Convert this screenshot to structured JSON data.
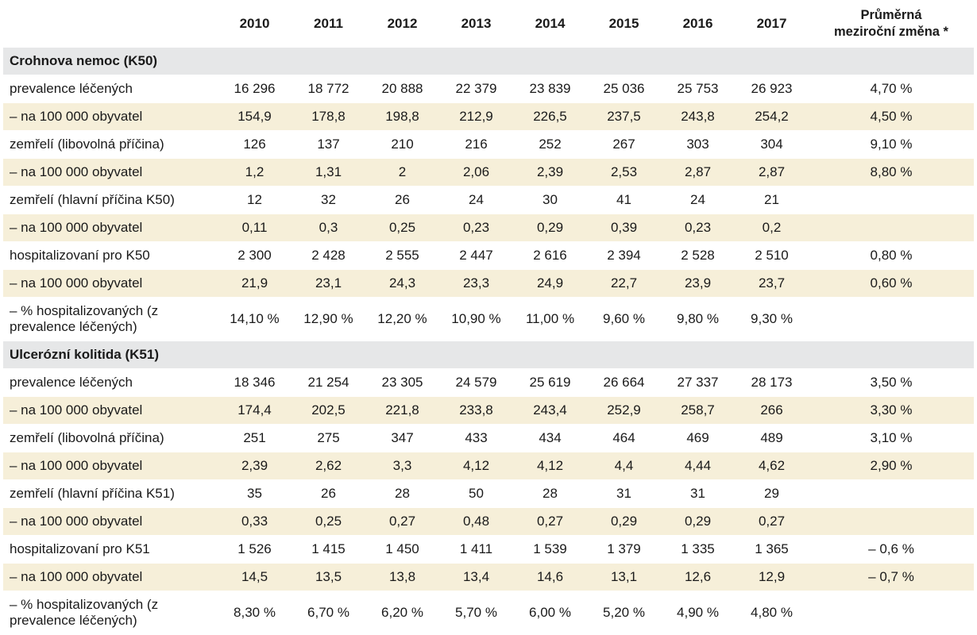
{
  "header": {
    "label": "",
    "years": [
      "2010",
      "2011",
      "2012",
      "2013",
      "2014",
      "2015",
      "2016",
      "2017"
    ],
    "avg_line1": "Průměrná",
    "avg_line2": "meziroční změna *"
  },
  "sections": [
    {
      "title": "Crohnova nemoc (K50)",
      "rows": [
        {
          "label": "prevalence léčených",
          "values": [
            "16 296",
            "18 772",
            "20 888",
            "22 379",
            "23 839",
            "25 036",
            "25 753",
            "26 923"
          ],
          "avg": "4,70 %"
        },
        {
          "label": "– na 100 000 obyvatel",
          "values": [
            "154,9",
            "178,8",
            "198,8",
            "212,9",
            "226,5",
            "237,5",
            "243,8",
            "254,2"
          ],
          "avg": "4,50 %"
        },
        {
          "label": "zemřelí (libovolná příčina)",
          "values": [
            "126",
            "137",
            "210",
            "216",
            "252",
            "267",
            "303",
            "304"
          ],
          "avg": "9,10 %"
        },
        {
          "label": "– na 100 000 obyvatel",
          "values": [
            "1,2",
            "1,31",
            "2",
            "2,06",
            "2,39",
            "2,53",
            "2,87",
            "2,87"
          ],
          "avg": "8,80 %"
        },
        {
          "label": "zemřelí (hlavní příčina K50)",
          "values": [
            "12",
            "32",
            "26",
            "24",
            "30",
            "41",
            "24",
            "21"
          ],
          "avg": ""
        },
        {
          "label": "– na 100 000 obyvatel",
          "values": [
            "0,11",
            "0,3",
            "0,25",
            "0,23",
            "0,29",
            "0,39",
            "0,23",
            "0,2"
          ],
          "avg": ""
        },
        {
          "label": "hospitalizovaní pro K50",
          "values": [
            "2 300",
            "2 428",
            "2 555",
            "2 447",
            "2 616",
            "2 394",
            "2 528",
            "2 510"
          ],
          "avg": "0,80 %"
        },
        {
          "label": "– na 100 000 obyvatel",
          "values": [
            "21,9",
            "23,1",
            "24,3",
            "23,3",
            "24,9",
            "22,7",
            "23,9",
            "23,7"
          ],
          "avg": "0,60 %"
        },
        {
          "label": "– % hospitalizovaných (z prevalence léčených)",
          "values": [
            "14,10 %",
            "12,90 %",
            "12,20 %",
            "10,90 %",
            "11,00 %",
            "9,60 %",
            "9,80 %",
            "9,30 %"
          ],
          "avg": "",
          "tall": true
        }
      ]
    },
    {
      "title": "Ulcerózní kolitida (K51)",
      "rows": [
        {
          "label": "prevalence léčených",
          "values": [
            "18 346",
            "21 254",
            "23 305",
            "24 579",
            "25 619",
            "26 664",
            "27 337",
            "28 173"
          ],
          "avg": "3,50 %"
        },
        {
          "label": "– na 100 000 obyvatel",
          "values": [
            "174,4",
            "202,5",
            "221,8",
            "233,8",
            "243,4",
            "252,9",
            "258,7",
            "266"
          ],
          "avg": "3,30 %"
        },
        {
          "label": "zemřelí (libovolná příčina)",
          "values": [
            "251",
            "275",
            "347",
            "433",
            "434",
            "464",
            "469",
            "489"
          ],
          "avg": "3,10 %"
        },
        {
          "label": "– na 100 000 obyvatel",
          "values": [
            "2,39",
            "2,62",
            "3,3",
            "4,12",
            "4,12",
            "4,4",
            "4,44",
            "4,62"
          ],
          "avg": "2,90 %"
        },
        {
          "label": "zemřelí (hlavní příčina K51)",
          "values": [
            "35",
            "26",
            "28",
            "50",
            "28",
            "31",
            "31",
            "29"
          ],
          "avg": ""
        },
        {
          "label": "– na 100 000 obyvatel",
          "values": [
            "0,33",
            "0,25",
            "0,27",
            "0,48",
            "0,27",
            "0,29",
            "0,29",
            "0,27"
          ],
          "avg": ""
        },
        {
          "label": "hospitalizovaní pro K51",
          "values": [
            "1 526",
            "1 415",
            "1 450",
            "1 411",
            "1 539",
            "1 379",
            "1 335",
            "1 365"
          ],
          "avg": "– 0,6 %"
        },
        {
          "label": "– na 100 000 obyvatel",
          "values": [
            "14,5",
            "13,5",
            "13,8",
            "13,4",
            "14,6",
            "13,1",
            "12,6",
            "12,9"
          ],
          "avg": "– 0,7 %"
        },
        {
          "label": "– % hospitalizovaných (z prevalence léčených)",
          "values": [
            "8,30 %",
            "6,70 %",
            "6,20 %",
            "5,70 %",
            "6,00 %",
            "5,20 %",
            "4,90 %",
            "4,80 %"
          ],
          "avg": "",
          "tall": true
        }
      ]
    }
  ],
  "colors": {
    "section_bg": "#e6e7e8",
    "alt_row_bg": "#f6efd9",
    "plain_row_bg": "#ffffff"
  }
}
